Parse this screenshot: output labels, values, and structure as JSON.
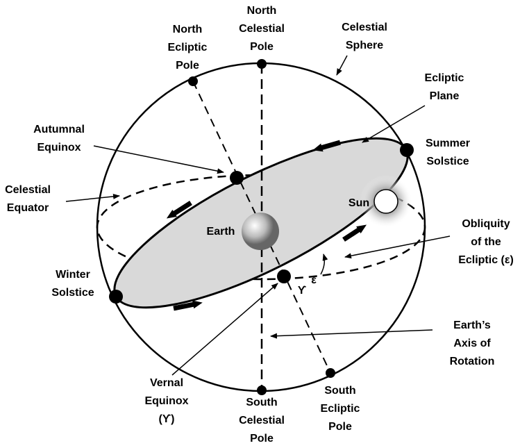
{
  "labels": {
    "north_celestial_pole": [
      "North",
      "Celestial",
      "Pole"
    ],
    "north_ecliptic_pole": [
      "North",
      "Ecliptic",
      "Pole"
    ],
    "celestial_sphere": [
      "Celestial",
      "Sphere"
    ],
    "ecliptic_plane": [
      "Ecliptic",
      "Plane"
    ],
    "autumnal_equinox": [
      "Autumnal",
      "Equinox"
    ],
    "summer_solstice": [
      "Summer",
      "Solstice"
    ],
    "celestial_equator": [
      "Celestial",
      "Equator"
    ],
    "obliquity": [
      "Obliquity",
      "of the",
      "Ecliptic (ε)"
    ],
    "sun": [
      "Sun"
    ],
    "earth": [
      "Earth"
    ],
    "epsilon": [
      "ε"
    ],
    "aries": [
      "ϒ"
    ],
    "winter_solstice": [
      "Winter",
      "Solstice"
    ],
    "earth_axis": [
      "Earth’s",
      "Axis of",
      "Rotation"
    ],
    "vernal_equinox": [
      "Vernal",
      "Equinox",
      "(ϒ)"
    ],
    "south_celestial_pole": [
      "South",
      "Celestial",
      "Pole"
    ],
    "south_ecliptic_pole": [
      "South",
      "Ecliptic",
      "Pole"
    ]
  }
}
